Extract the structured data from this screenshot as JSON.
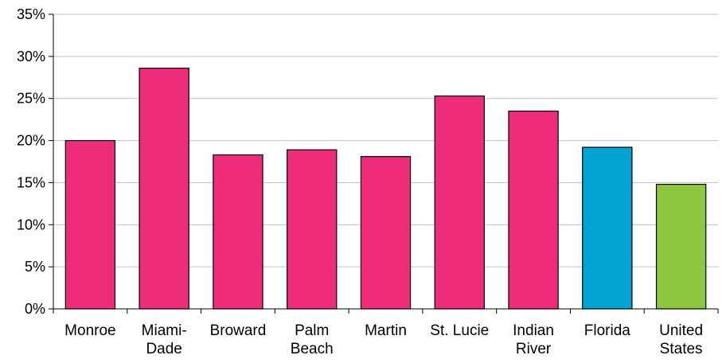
{
  "chart_data": {
    "type": "bar",
    "title": "",
    "xlabel": "",
    "ylabel": "",
    "ylim": [
      0,
      35
    ],
    "y_tick_step": 5,
    "y_tick_format": "percent",
    "grid": true,
    "legend": "none",
    "categories": [
      [
        "Monroe"
      ],
      [
        "Miami-",
        "Dade"
      ],
      [
        "Broward"
      ],
      [
        "Palm",
        "Beach"
      ],
      [
        "Martin"
      ],
      [
        "St. Lucie"
      ],
      [
        "Indian",
        "River"
      ],
      [
        "Florida"
      ],
      [
        "United",
        "States"
      ]
    ],
    "values": [
      20.0,
      28.6,
      18.3,
      18.9,
      18.1,
      25.3,
      23.5,
      19.2,
      14.8
    ],
    "bar_colors": [
      "#ee2c7a",
      "#ee2c7a",
      "#ee2c7a",
      "#ee2c7a",
      "#ee2c7a",
      "#ee2c7a",
      "#ee2c7a",
      "#00a3d1",
      "#8dc63f"
    ],
    "bar_outline": "#000000",
    "gridline_color": "#c0c0c0"
  }
}
